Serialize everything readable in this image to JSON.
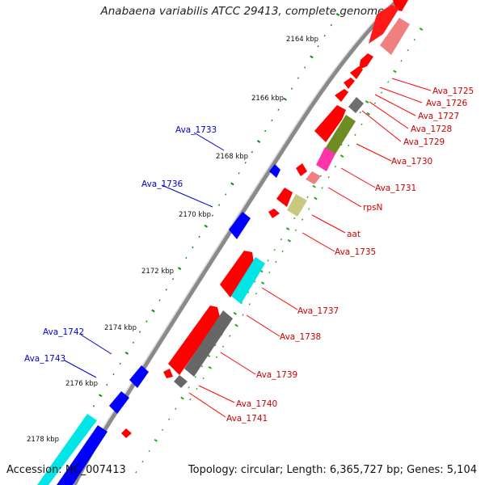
{
  "title": "Anabaena variabilis ATCC 29413, complete genome",
  "footer": {
    "accession": "Accession: NC_007413",
    "topology": "Topology: circular; Length: 6,365,727 bp; Genes: 5,104"
  },
  "colors": {
    "forward_gene": "#ff0000",
    "reverse_gene": "#0000ff",
    "backbone": "#999999",
    "tick_major": "#118811",
    "tick_minor": "#22aa22",
    "label_reverse": "#0000cc",
    "label_forward": "#cc0000",
    "cyan": "#00e5e5",
    "olive": "#6e8c22",
    "magenta": "#ff33aa",
    "pink": "#f08080",
    "khaki": "#c8c880",
    "gray": "#777777"
  },
  "kbp_ticks": [
    "2164 kbp",
    "2166 kbp",
    "2168 kbp",
    "2170 kbp",
    "2172 kbp",
    "2174 kbp",
    "2176 kbp",
    "2178 kbp"
  ],
  "genes": [
    {
      "label": "Ava_1725",
      "strand": "+"
    },
    {
      "label": "Ava_1726",
      "strand": "+"
    },
    {
      "label": "Ava_1727",
      "strand": "+"
    },
    {
      "label": "Ava_1728",
      "strand": "+"
    },
    {
      "label": "Ava_1729",
      "strand": "+"
    },
    {
      "label": "Ava_1730",
      "strand": "+"
    },
    {
      "label": "Ava_1731",
      "strand": "+"
    },
    {
      "label": "rpsN",
      "strand": "+"
    },
    {
      "label": "aat",
      "strand": "+"
    },
    {
      "label": "Ava_1735",
      "strand": "+"
    },
    {
      "label": "Ava_1733",
      "strand": "-"
    },
    {
      "label": "Ava_1736",
      "strand": "-"
    },
    {
      "label": "Ava_1737",
      "strand": "+"
    },
    {
      "label": "Ava_1738",
      "strand": "+"
    },
    {
      "label": "Ava_1739",
      "strand": "+"
    },
    {
      "label": "Ava_1740",
      "strand": "+"
    },
    {
      "label": "Ava_1741",
      "strand": "+"
    },
    {
      "label": "Ava_1742",
      "strand": "-"
    },
    {
      "label": "Ava_1743",
      "strand": "-"
    }
  ]
}
